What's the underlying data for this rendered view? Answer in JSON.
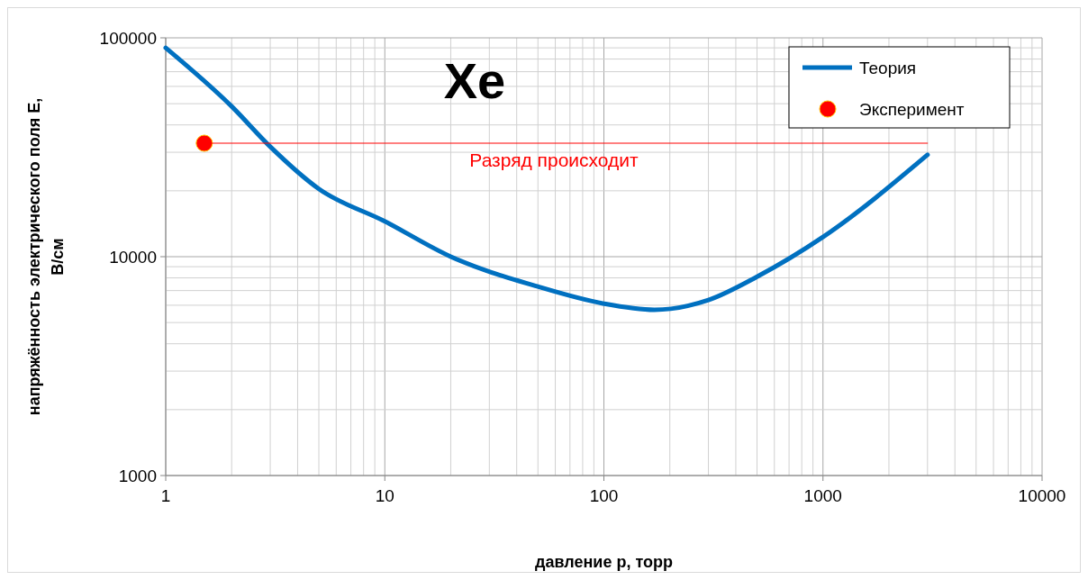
{
  "chart_data": {
    "type": "line",
    "xlabel": "давление p, торр",
    "ylabel": "напряжённость электрического поля E, В/см",
    "log": "xy",
    "grid": true,
    "legend": "top right",
    "line_style": "solid",
    "xlim": [
      1,
      10000
    ],
    "ylim": [
      1000,
      100000
    ],
    "xticks": [
      1,
      {
        "value": 2,
        "label": null
      },
      {
        "value": 3,
        "label": null
      },
      {
        "value": 4,
        "label": null
      },
      {
        "value": 5,
        "label": null
      },
      {
        "value": 6,
        "label": null
      },
      {
        "value": 7,
        "label": null
      },
      {
        "value": 8,
        "label": null
      },
      {
        "value": 9,
        "label": null
      },
      10,
      {
        "value": 20,
        "label": null
      },
      {
        "value": 30,
        "label": null
      },
      {
        "value": 40,
        "label": null
      },
      {
        "value": 50,
        "label": null
      },
      {
        "value": 60,
        "label": null
      },
      {
        "value": 70,
        "label": null
      },
      {
        "value": 80,
        "label": null
      },
      {
        "value": 90,
        "label": null
      },
      100,
      {
        "value": 200,
        "label": null
      },
      {
        "value": 300,
        "label": null
      },
      {
        "value": 400,
        "label": null
      },
      {
        "value": 500,
        "label": null
      },
      {
        "value": 600,
        "label": null
      },
      {
        "value": 700,
        "label": null
      },
      {
        "value": 800,
        "label": null
      },
      {
        "value": 900,
        "label": null
      },
      1000,
      {
        "value": 2000,
        "label": null
      },
      {
        "value": 3000,
        "label": null
      },
      {
        "value": 4000,
        "label": null
      },
      {
        "value": 5000,
        "label": null
      },
      {
        "value": 6000,
        "label": null
      },
      {
        "value": 7000,
        "label": null
      },
      {
        "value": 8000,
        "label": null
      },
      {
        "value": 9000,
        "label": null
      },
      10000
    ],
    "yticks": [
      1000,
      {
        "value": 2000,
        "label": null
      },
      {
        "value": 3000,
        "label": null
      },
      {
        "value": 4000,
        "label": null
      },
      {
        "value": 5000,
        "label": null
      },
      {
        "value": 6000,
        "label": null
      },
      {
        "value": 7000,
        "label": null
      },
      {
        "value": 8000,
        "label": null
      },
      {
        "value": 9000,
        "label": null
      },
      10000,
      {
        "value": 20000,
        "label": null
      },
      {
        "value": 30000,
        "label": null
      },
      {
        "value": 40000,
        "label": null
      },
      {
        "value": 50000,
        "label": null
      },
      {
        "value": 60000,
        "label": null
      },
      {
        "value": 70000,
        "label": null
      },
      {
        "value": 80000,
        "label": null
      },
      {
        "value": 90000,
        "label": null
      },
      100000
    ],
    "series": [
      {
        "name": "Теория",
        "color": "#0070c0",
        "marker": "none",
        "x": [
          1,
          2,
          3,
          5,
          10,
          20,
          50,
          100,
          170,
          300,
          500,
          1000,
          3000
        ],
        "values": [
          90000,
          48600,
          31800,
          20400,
          14500,
          10000,
          7300,
          6100,
          5720,
          6340,
          8100,
          12300,
          29200
        ]
      },
      {
        "name": "Эксперимент",
        "type": "scatter",
        "color": "#ff0000",
        "marker": "circle",
        "x": [
          1.5
        ],
        "values": [
          33000
        ]
      },
      {
        "type": "line",
        "color": "#ff0000",
        "marker": "none",
        "x": [
          1.5,
          3000
        ],
        "values": [
          33000,
          33000
        ]
      }
    ],
    "annotations": [
      "Xe",
      "Разряд происходит"
    ]
  }
}
